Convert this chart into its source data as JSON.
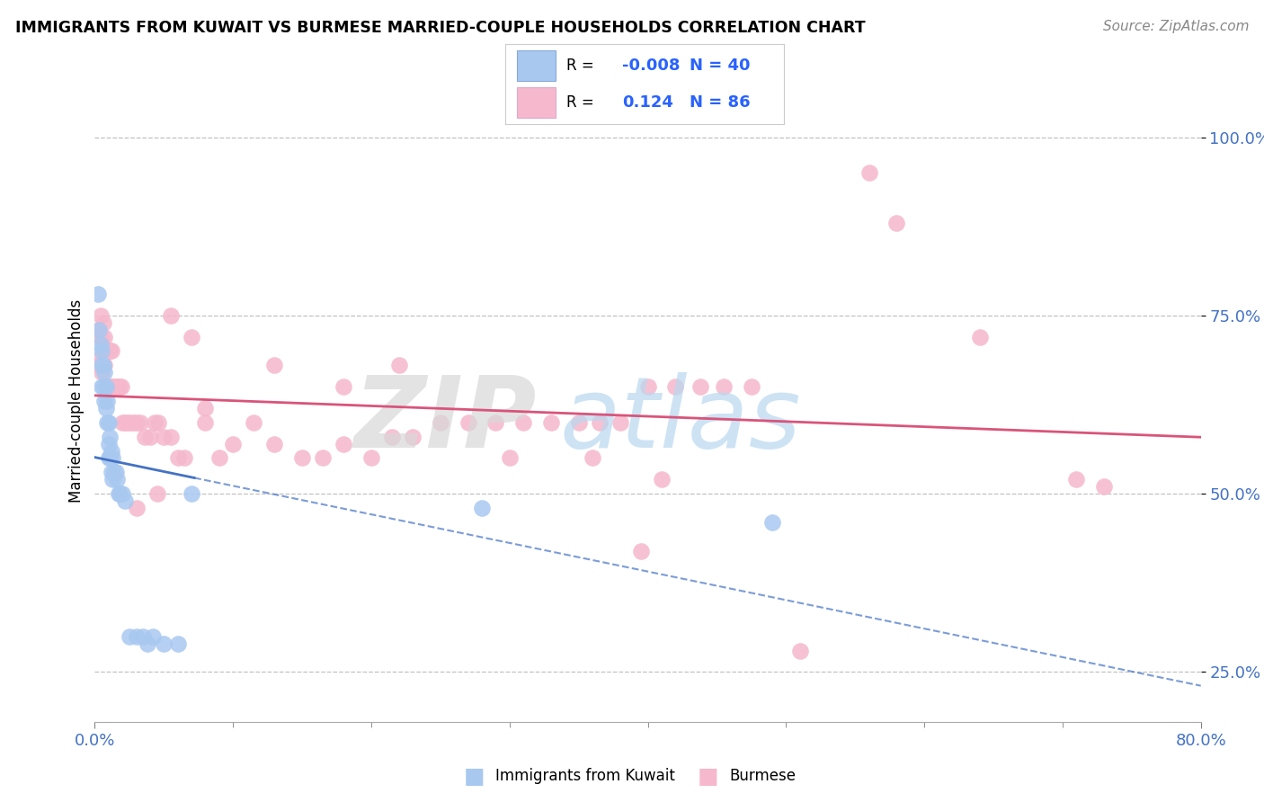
{
  "title": "IMMIGRANTS FROM KUWAIT VS BURMESE MARRIED-COUPLE HOUSEHOLDS CORRELATION CHART",
  "source_text": "Source: ZipAtlas.com",
  "xlabel_blue": "Immigrants from Kuwait",
  "xlabel_pink": "Burmese",
  "ylabel": "Married-couple Households",
  "xlim": [
    0.0,
    0.8
  ],
  "ylim": [
    0.18,
    1.08
  ],
  "xtick_vals": [
    0.0,
    0.8
  ],
  "xticklabels": [
    "0.0%",
    "80.0%"
  ],
  "ytick_vals": [
    0.25,
    0.5,
    0.75,
    1.0
  ],
  "yticklabels": [
    "25.0%",
    "50.0%",
    "75.0%",
    "100.0%"
  ],
  "blue_R": -0.008,
  "blue_N": 40,
  "pink_R": 0.124,
  "pink_N": 86,
  "blue_scatter_color": "#a8c8f0",
  "pink_scatter_color": "#f5b8cc",
  "blue_line_color": "#4472c4",
  "pink_line_color": "#d9547a",
  "legend_R_color": "#2962ff",
  "legend_N_color": "#2962ff",
  "blue_x": [
    0.002,
    0.003,
    0.004,
    0.005,
    0.005,
    0.005,
    0.006,
    0.006,
    0.007,
    0.007,
    0.008,
    0.008,
    0.009,
    0.009,
    0.01,
    0.01,
    0.01,
    0.011,
    0.011,
    0.012,
    0.012,
    0.013,
    0.013,
    0.014,
    0.015,
    0.016,
    0.017,
    0.018,
    0.02,
    0.022,
    0.025,
    0.03,
    0.035,
    0.038,
    0.042,
    0.05,
    0.06,
    0.07,
    0.28,
    0.49
  ],
  "blue_y": [
    0.78,
    0.73,
    0.71,
    0.7,
    0.68,
    0.65,
    0.68,
    0.65,
    0.67,
    0.63,
    0.65,
    0.62,
    0.63,
    0.6,
    0.6,
    0.57,
    0.55,
    0.58,
    0.55,
    0.56,
    0.53,
    0.55,
    0.52,
    0.53,
    0.53,
    0.52,
    0.5,
    0.5,
    0.5,
    0.49,
    0.3,
    0.3,
    0.3,
    0.29,
    0.3,
    0.29,
    0.29,
    0.5,
    0.48,
    0.46
  ],
  "pink_x": [
    0.002,
    0.002,
    0.003,
    0.003,
    0.004,
    0.004,
    0.005,
    0.005,
    0.006,
    0.006,
    0.007,
    0.007,
    0.008,
    0.008,
    0.009,
    0.009,
    0.01,
    0.01,
    0.011,
    0.011,
    0.012,
    0.012,
    0.013,
    0.014,
    0.015,
    0.016,
    0.017,
    0.018,
    0.019,
    0.02,
    0.022,
    0.024,
    0.026,
    0.028,
    0.03,
    0.033,
    0.036,
    0.04,
    0.043,
    0.046,
    0.05,
    0.055,
    0.06,
    0.065,
    0.07,
    0.08,
    0.09,
    0.1,
    0.115,
    0.13,
    0.15,
    0.165,
    0.18,
    0.2,
    0.215,
    0.23,
    0.25,
    0.27,
    0.29,
    0.31,
    0.33,
    0.35,
    0.365,
    0.38,
    0.4,
    0.42,
    0.438,
    0.455,
    0.475,
    0.3,
    0.22,
    0.18,
    0.13,
    0.08,
    0.055,
    0.36,
    0.41,
    0.51,
    0.58,
    0.56,
    0.64,
    0.73,
    0.03,
    0.045,
    0.395,
    0.71
  ],
  "pink_y": [
    0.68,
    0.72,
    0.68,
    0.73,
    0.69,
    0.75,
    0.67,
    0.72,
    0.68,
    0.74,
    0.68,
    0.72,
    0.65,
    0.7,
    0.65,
    0.7,
    0.65,
    0.7,
    0.65,
    0.7,
    0.65,
    0.7,
    0.65,
    0.65,
    0.65,
    0.65,
    0.65,
    0.65,
    0.65,
    0.6,
    0.6,
    0.6,
    0.6,
    0.6,
    0.6,
    0.6,
    0.58,
    0.58,
    0.6,
    0.6,
    0.58,
    0.58,
    0.55,
    0.55,
    0.72,
    0.6,
    0.55,
    0.57,
    0.6,
    0.57,
    0.55,
    0.55,
    0.57,
    0.55,
    0.58,
    0.58,
    0.6,
    0.6,
    0.6,
    0.6,
    0.6,
    0.6,
    0.6,
    0.6,
    0.65,
    0.65,
    0.65,
    0.65,
    0.65,
    0.55,
    0.68,
    0.65,
    0.68,
    0.62,
    0.75,
    0.55,
    0.52,
    0.28,
    0.88,
    0.95,
    0.72,
    0.51,
    0.48,
    0.5,
    0.42,
    0.52
  ]
}
